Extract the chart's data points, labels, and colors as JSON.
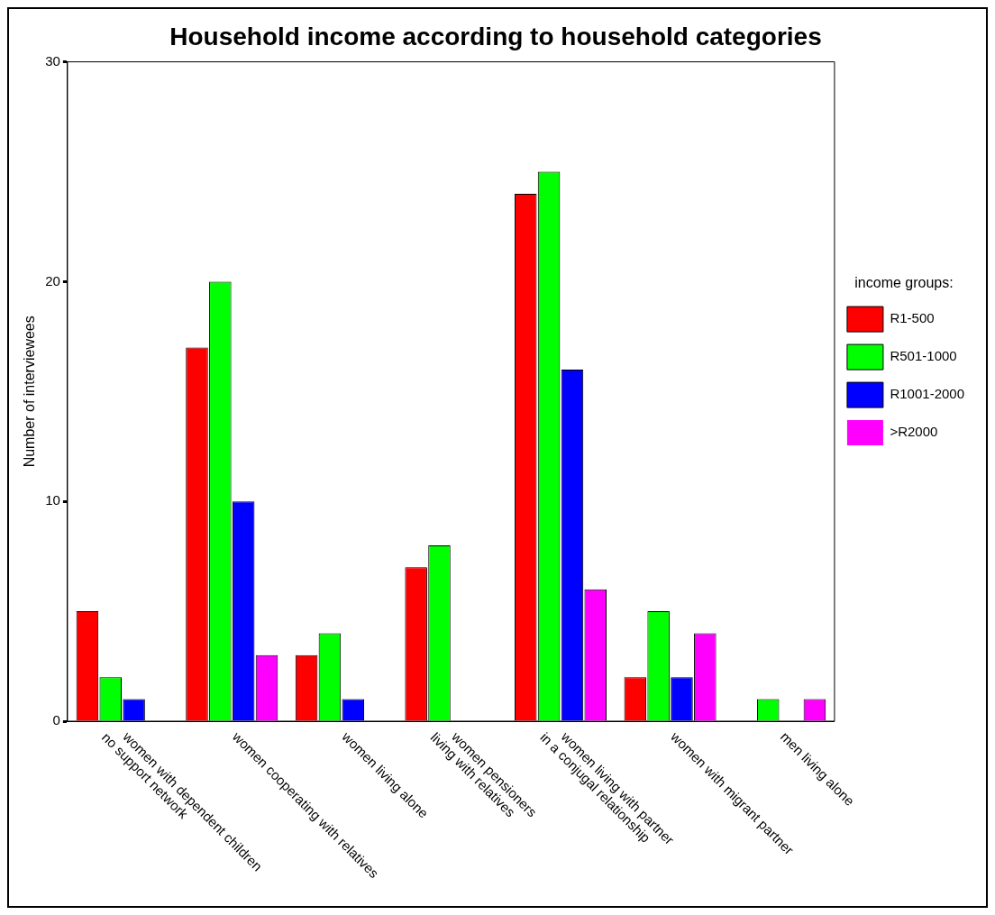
{
  "chart_data": {
    "type": "bar",
    "title": "Household income according to household categories",
    "ylabel": "Number of interviewees",
    "legend_title": "income groups:",
    "categories": [
      "women with dependent children\nno support network",
      "women cooperating with relatives",
      "women living alone",
      "women pensioners\nliving with relatives",
      "women living with partner\nin a conjugal relationship",
      "women with migrant partner",
      "men living alone"
    ],
    "series": [
      {
        "name": "R1-500",
        "color": "#ff0000",
        "values": [
          5,
          17,
          3,
          7,
          24,
          2,
          0
        ]
      },
      {
        "name": "R501-1000",
        "color": "#00ff00",
        "values": [
          2,
          20,
          4,
          8,
          25,
          5,
          1
        ]
      },
      {
        "name": "R1001-2000",
        "color": "#0000ff",
        "values": [
          1,
          10,
          1,
          0,
          16,
          2,
          0
        ]
      },
      {
        "name": ">R2000",
        "color": "#ff00ff",
        "values": [
          0,
          3,
          0,
          0,
          6,
          4,
          1
        ]
      }
    ],
    "ylim": [
      0,
      30
    ],
    "yticks": [
      0,
      10,
      20,
      30
    ],
    "grid": false,
    "legend": "right"
  }
}
